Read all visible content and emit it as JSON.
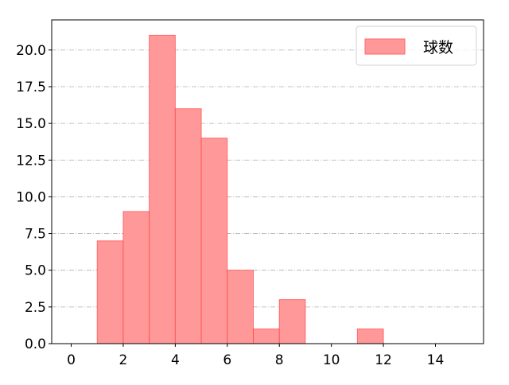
{
  "chart_data": {
    "type": "bar",
    "histogram": true,
    "bins": [
      [
        1,
        2
      ],
      [
        2,
        3
      ],
      [
        3,
        4
      ],
      [
        4,
        5
      ],
      [
        5,
        6
      ],
      [
        6,
        7
      ],
      [
        7,
        8
      ],
      [
        8,
        9
      ],
      [
        11,
        12
      ]
    ],
    "values": [
      7,
      9,
      21,
      16,
      14,
      5,
      1,
      3,
      1
    ],
    "series": [
      {
        "name": "球数",
        "values": [
          7,
          9,
          21,
          16,
          14,
          5,
          1,
          3,
          1
        ]
      }
    ],
    "title": "",
    "xlabel": "",
    "ylabel": "",
    "xlim": [
      -0.75,
      15.85
    ],
    "ylim": [
      0,
      22.05
    ],
    "xticks": [
      "0",
      "2",
      "4",
      "6",
      "8",
      "10",
      "12",
      "14"
    ],
    "yticks": [
      "0.0",
      "2.5",
      "5.0",
      "7.5",
      "10.0",
      "12.5",
      "15.0",
      "17.5",
      "20.0"
    ],
    "grid": "horizontal dash-dot",
    "legend": "top-right",
    "colors": {
      "bar_fill": "#ff9999",
      "bar_edge": "#ff4444",
      "grid": "#b0b0b0"
    }
  }
}
